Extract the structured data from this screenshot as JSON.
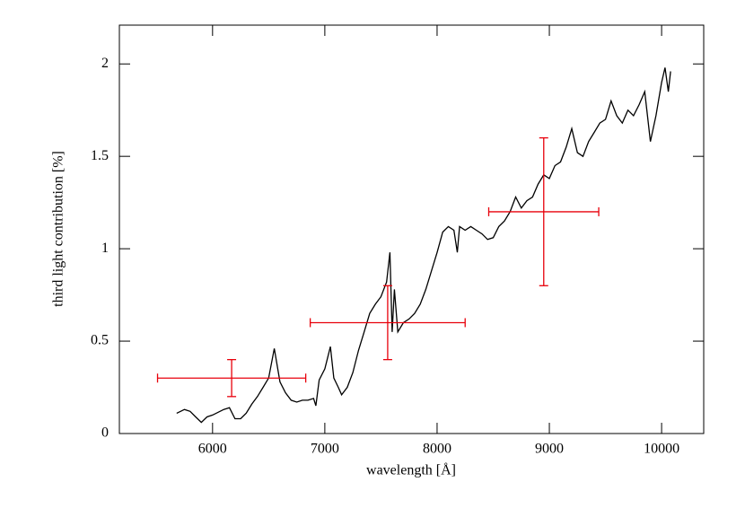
{
  "chart_data": {
    "type": "line",
    "xlabel": "wavelength [Å]",
    "ylabel": "third light contribution [%]",
    "xlim": [
      5170,
      10375
    ],
    "ylim": [
      0,
      2.21
    ],
    "xticks": [
      6000,
      7000,
      8000,
      9000,
      10000
    ],
    "yticks": [
      0,
      0.5,
      1,
      1.5,
      2
    ],
    "x": [
      5680,
      5750,
      5800,
      5850,
      5900,
      5950,
      6000,
      6100,
      6150,
      6200,
      6250,
      6300,
      6350,
      6400,
      6450,
      6500,
      6550,
      6600,
      6650,
      6700,
      6750,
      6800,
      6850,
      6900,
      6920,
      6950,
      7000,
      7050,
      7080,
      7120,
      7150,
      7200,
      7250,
      7300,
      7350,
      7400,
      7450,
      7500,
      7550,
      7580,
      7600,
      7620,
      7650,
      7700,
      7750,
      7800,
      7850,
      7900,
      7950,
      8000,
      8050,
      8100,
      8150,
      8180,
      8200,
      8250,
      8300,
      8350,
      8400,
      8450,
      8500,
      8550,
      8600,
      8650,
      8700,
      8750,
      8800,
      8850,
      8900,
      8950,
      9000,
      9050,
      9100,
      9150,
      9200,
      9250,
      9300,
      9350,
      9400,
      9450,
      9500,
      9550,
      9600,
      9650,
      9700,
      9750,
      9800,
      9850,
      9900,
      9950,
      10000,
      10030,
      10060,
      10080
    ],
    "series": [
      {
        "color": "#000000",
        "values": [
          0.11,
          0.13,
          0.12,
          0.09,
          0.06,
          0.09,
          0.1,
          0.13,
          0.14,
          0.08,
          0.08,
          0.11,
          0.16,
          0.2,
          0.25,
          0.3,
          0.46,
          0.28,
          0.22,
          0.18,
          0.17,
          0.18,
          0.18,
          0.19,
          0.15,
          0.29,
          0.35,
          0.47,
          0.3,
          0.25,
          0.21,
          0.25,
          0.33,
          0.45,
          0.55,
          0.65,
          0.7,
          0.74,
          0.82,
          0.98,
          0.55,
          0.78,
          0.55,
          0.6,
          0.62,
          0.65,
          0.7,
          0.78,
          0.88,
          0.98,
          1.09,
          1.12,
          1.1,
          0.98,
          1.12,
          1.1,
          1.12,
          1.1,
          1.08,
          1.05,
          1.06,
          1.12,
          1.15,
          1.2,
          1.28,
          1.22,
          1.26,
          1.28,
          1.35,
          1.4,
          1.38,
          1.45,
          1.47,
          1.55,
          1.65,
          1.52,
          1.5,
          1.58,
          1.63,
          1.68,
          1.7,
          1.8,
          1.72,
          1.68,
          1.75,
          1.72,
          1.78,
          1.85,
          1.58,
          1.72,
          1.9,
          1.98,
          1.85,
          1.96
        ]
      }
    ],
    "errorbars": {
      "color": "#e8000b",
      "x": [
        6170,
        7560,
        8950
      ],
      "xerr": [
        660,
        690,
        490
      ],
      "values": [
        0.3,
        0.6,
        1.2
      ],
      "yerr": [
        0.1,
        0.2,
        0.4
      ]
    }
  }
}
